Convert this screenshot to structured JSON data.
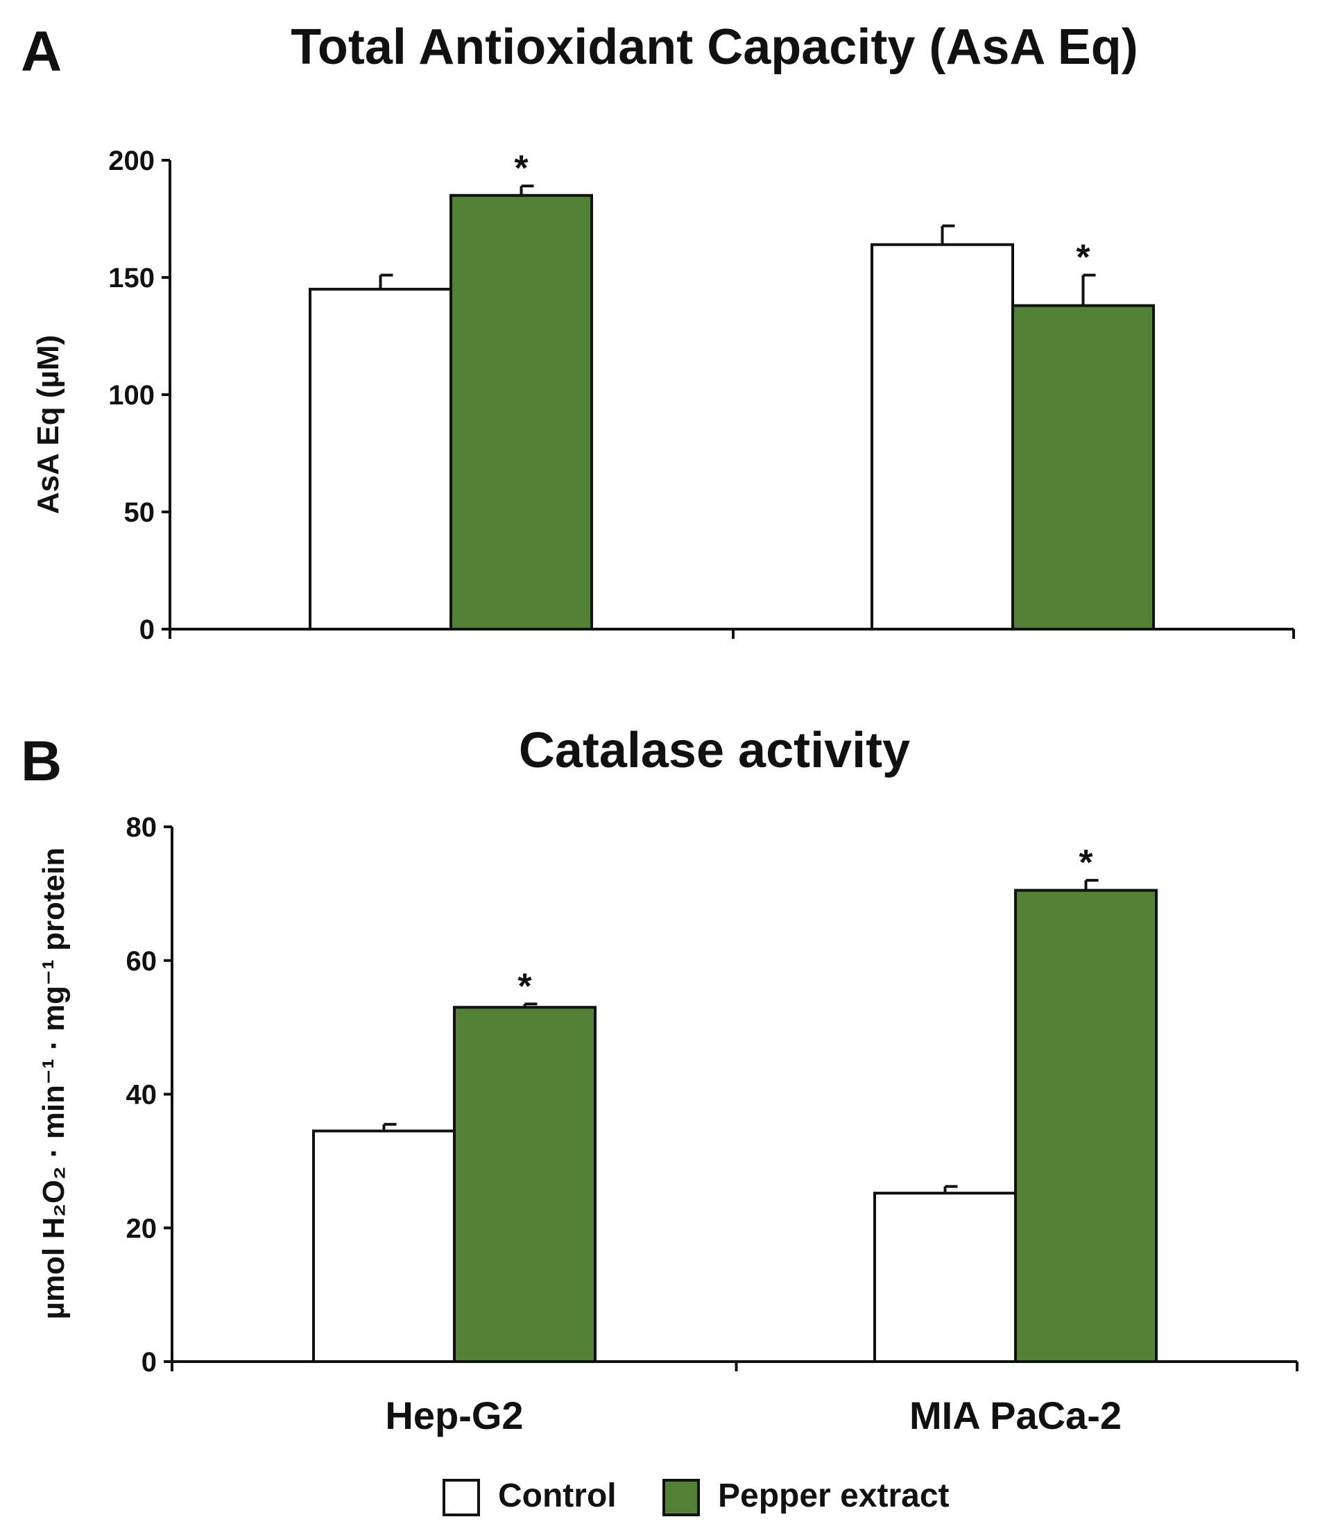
{
  "colors": {
    "control": "#ffffff",
    "pepper": "#538135",
    "axis": "#111111"
  },
  "legend": {
    "items": [
      {
        "label": "Control",
        "color": "#ffffff"
      },
      {
        "label": "Pepper extract",
        "color": "#538135"
      }
    ]
  },
  "chart_data": [
    {
      "panel": "A",
      "type": "bar",
      "title": "Total Antioxidant Capacity (AsA Eq)",
      "ylabel": "AsA Eq (µM)",
      "xlabel": "",
      "categories": [
        "Hep-G2",
        "MIA PaCa-2"
      ],
      "show_category_labels": false,
      "ylim": [
        0,
        200
      ],
      "yticks": [
        0,
        50,
        100,
        150,
        200
      ],
      "series": [
        {
          "name": "Control",
          "values": [
            145,
            164
          ],
          "errors": [
            6,
            8
          ],
          "significance": [
            "",
            ""
          ]
        },
        {
          "name": "Pepper extract",
          "values": [
            185,
            138
          ],
          "errors": [
            4,
            13
          ],
          "significance": [
            "*",
            "*"
          ]
        }
      ]
    },
    {
      "panel": "B",
      "type": "bar",
      "title": "Catalase activity",
      "ylabel": "µmol H₂O₂ · min⁻¹ · mg⁻¹ protein",
      "xlabel": "",
      "categories": [
        "Hep-G2",
        "MIA PaCa-2"
      ],
      "show_category_labels": true,
      "ylim": [
        0,
        80
      ],
      "yticks": [
        0,
        20,
        40,
        60,
        80
      ],
      "series": [
        {
          "name": "Control",
          "values": [
            34.5,
            25.2
          ],
          "errors": [
            1,
            1
          ],
          "significance": [
            "",
            ""
          ]
        },
        {
          "name": "Pepper extract",
          "values": [
            53,
            70.5
          ],
          "errors": [
            0.5,
            1.5
          ],
          "significance": [
            "*",
            "*"
          ]
        }
      ]
    }
  ]
}
